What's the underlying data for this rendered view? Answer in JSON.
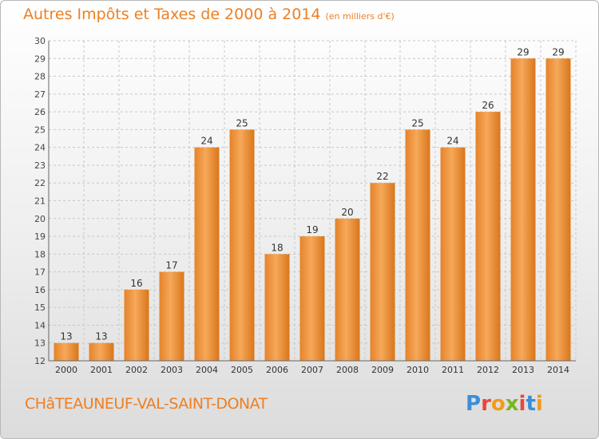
{
  "chart_data": {
    "type": "bar",
    "title": "Autres Impôts et Taxes de 2000 à 2014",
    "subtitle": "(en milliers d'€)",
    "categories": [
      "2000",
      "2001",
      "2002",
      "2003",
      "2004",
      "2005",
      "2006",
      "2007",
      "2008",
      "2009",
      "2010",
      "2011",
      "2012",
      "2013",
      "2014"
    ],
    "values": [
      13,
      13,
      16,
      17,
      24,
      25,
      18,
      19,
      20,
      22,
      25,
      24,
      26,
      29,
      29
    ],
    "ylim": [
      12,
      30
    ],
    "yticks": [
      12,
      13,
      14,
      15,
      16,
      17,
      18,
      19,
      20,
      21,
      22,
      23,
      24,
      25,
      26,
      27,
      28,
      29,
      30
    ],
    "grid": true,
    "colors": {
      "bar_light": "#f6a85a",
      "bar_dark": "#e07c1f",
      "title": "#ee7f22",
      "grid": "#c8c8c8"
    }
  },
  "footer": {
    "location": "CHâTEAUNEUF-VAL-SAINT-DONAT",
    "logo": [
      "P",
      "r",
      "o",
      "x",
      "i",
      "t",
      "i"
    ],
    "logo_colors": [
      "#3a8fd6",
      "#e8463c",
      "#f29b1c",
      "#7ab51d",
      "#e8463c",
      "#3a8fd6",
      "#f29b1c"
    ]
  }
}
